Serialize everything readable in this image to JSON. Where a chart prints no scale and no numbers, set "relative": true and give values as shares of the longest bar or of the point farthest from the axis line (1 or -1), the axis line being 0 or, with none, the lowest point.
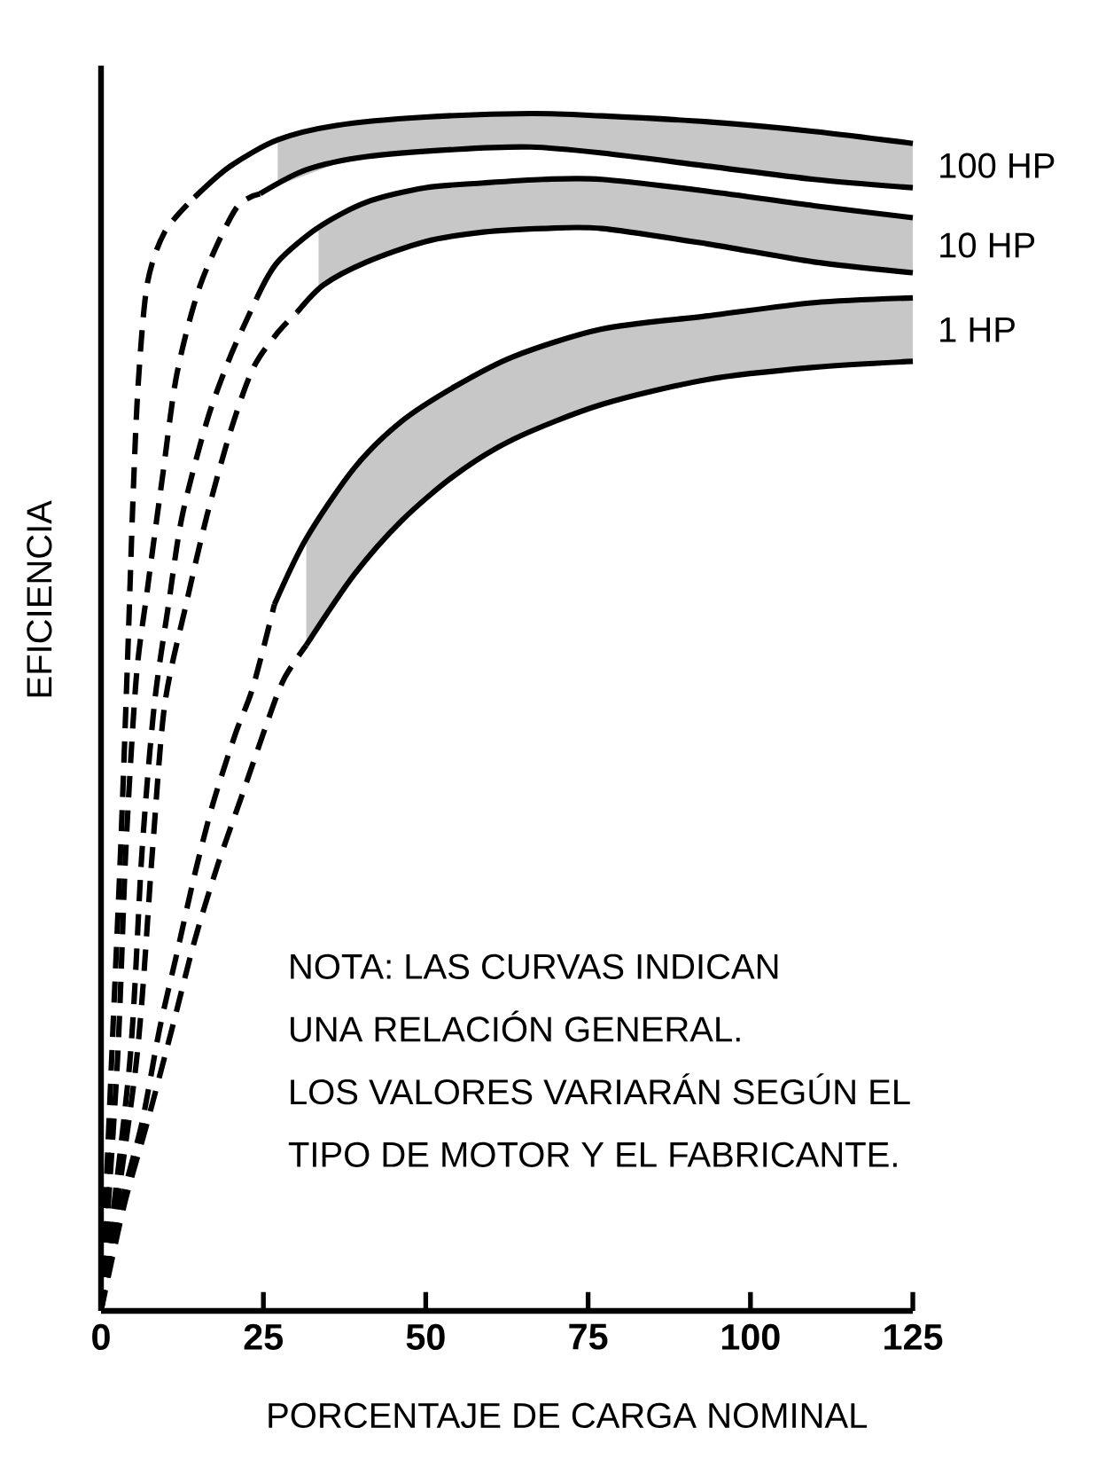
{
  "chart_data": {
    "type": "line",
    "relative": true,
    "xlabel": "PORCENTAJE DE CARGA NOMINAL",
    "ylabel": "EFICIENCIA",
    "xlim": [
      0,
      125
    ],
    "xticks": [
      0,
      25,
      50,
      75,
      100,
      125
    ],
    "series": [
      {
        "color": "#000000",
        "line_style": "dashed",
        "x": [
          0,
          1.6,
          3.0,
          4.1,
          4.9,
          5.7,
          7.1,
          9.8,
          14.4
        ],
        "values": [
          0,
          0.206,
          0.383,
          0.546,
          0.675,
          0.772,
          0.857,
          0.901,
          0.93
        ]
      },
      {
        "color": "#000000",
        "line_style": "solid",
        "x": [
          14.4,
          19.9,
          27.2,
          36.2,
          49.9,
          66.2,
          77.1,
          93.5,
          109.8,
          125
        ],
        "values": [
          0.93,
          0.956,
          0.978,
          0.99,
          0.997,
          1.0,
          0.998,
          0.993,
          0.985,
          0.975
        ],
        "upper": [
          null,
          null,
          0.978,
          0.99,
          0.997,
          1.0,
          0.998,
          0.993,
          0.985,
          0.975
        ],
        "lower": [
          null,
          null,
          0.94,
          0.958,
          0.969,
          0.972,
          0.967,
          0.956,
          0.945,
          0.938
        ]
      },
      {
        "color": "#000000",
        "line_style": "dashed",
        "x": [
          0,
          2.5,
          3.8,
          5.4,
          7.1,
          9.5,
          11.7,
          15.3,
          20.7,
          24.5
        ],
        "values": [
          0,
          0.206,
          0.383,
          0.527,
          0.601,
          0.698,
          0.783,
          0.857,
          0.92,
          0.933
        ]
      },
      {
        "color": "#000000",
        "line_style": "solid",
        "x": [
          24.5,
          31.6,
          40.9,
          54.5,
          66.2,
          77.1,
          93.5,
          109.8,
          125
        ],
        "values": [
          0.933,
          0.953,
          0.964,
          0.97,
          0.972,
          0.967,
          0.956,
          0.945,
          0.938
        ]
      },
      {
        "color": "#000000",
        "line_style": "dashed",
        "x": [
          0,
          4.4,
          6.3,
          8.2,
          10.4,
          12.5,
          16.3,
          19.9,
          24.0
        ],
        "values": [
          0,
          0.206,
          0.383,
          0.506,
          0.59,
          0.664,
          0.743,
          0.797,
          0.846
        ]
      },
      {
        "color": "#000000",
        "line_style": "solid",
        "x": [
          24.0,
          27.2,
          33.5,
          40.9,
          49.9,
          58.9,
          68.1,
          77.1,
          93.5,
          109.8,
          125
        ],
        "values": [
          0.846,
          0.876,
          0.905,
          0.926,
          0.938,
          0.942,
          0.945,
          0.945,
          0.935,
          0.923,
          0.913
        ],
        "upper": [
          null,
          null,
          0.905,
          0.926,
          0.938,
          0.942,
          0.945,
          0.945,
          0.935,
          0.923,
          0.913
        ],
        "lower": [
          null,
          null,
          0.853,
          0.876,
          0.893,
          0.901,
          0.904,
          0.904,
          0.891,
          0.876,
          0.867
        ]
      },
      {
        "color": "#000000",
        "line_style": "dashed",
        "x": [
          0,
          5.4,
          7.9,
          9.8,
          13.1,
          16.3,
          19.9,
          23.4,
          27.2,
          30.2
        ],
        "values": [
          0,
          0.206,
          0.383,
          0.506,
          0.59,
          0.664,
          0.734,
          0.787,
          0.817,
          0.834
        ]
      },
      {
        "color": "#000000",
        "line_style": "solid",
        "x": [
          30.2,
          34.3,
          40.9,
          49.9,
          58.9,
          68.1,
          77.1,
          93.5,
          109.8,
          125
        ],
        "values": [
          0.834,
          0.857,
          0.876,
          0.893,
          0.901,
          0.904,
          0.904,
          0.891,
          0.876,
          0.867
        ]
      },
      {
        "color": "#000000",
        "line_style": "dashed",
        "x": [
          0,
          3.0,
          6.3,
          9.0,
          11.7,
          14.4,
          17.2,
          20.7,
          23.4,
          26.7
        ],
        "values": [
          0,
          0.087,
          0.157,
          0.235,
          0.299,
          0.364,
          0.423,
          0.482,
          0.521,
          0.59
        ]
      },
      {
        "color": "#000000",
        "line_style": "solid",
        "x": [
          26.7,
          31.6,
          39.0,
          46.3,
          54.5,
          63.5,
          77.1,
          93.5,
          109.8,
          125
        ],
        "values": [
          0.59,
          0.645,
          0.704,
          0.743,
          0.772,
          0.797,
          0.82,
          0.831,
          0.842,
          0.846
        ],
        "upper": [
          null,
          0.645,
          0.704,
          0.743,
          0.772,
          0.797,
          0.82,
          0.831,
          0.842,
          0.846
        ],
        "lower": [
          null,
          0.556,
          0.615,
          0.66,
          0.698,
          0.728,
          0.757,
          0.778,
          0.788,
          0.793
        ]
      },
      {
        "color": "#000000",
        "line_style": "dashed",
        "x": [
          0,
          3.5,
          7.1,
          10.9,
          14.4,
          18.0,
          21.8,
          25.3,
          28.1,
          31.6
        ],
        "values": [
          0,
          0.087,
          0.157,
          0.235,
          0.309,
          0.373,
          0.432,
          0.487,
          0.527,
          0.556
        ]
      },
      {
        "color": "#000000",
        "line_style": "solid",
        "x": [
          31.6,
          39.0,
          46.3,
          54.5,
          63.5,
          77.1,
          93.5,
          109.8,
          125
        ],
        "values": [
          0.556,
          0.615,
          0.66,
          0.698,
          0.728,
          0.757,
          0.778,
          0.788,
          0.793
        ]
      }
    ],
    "annotations": [
      "100 HP",
      "10 HP",
      "1 HP",
      "NOTA: LAS CURVAS INDICAN",
      "UNA RELACIÓN GENERAL.",
      "LOS VALORES VARIARÁN SEGÚN EL",
      "TIPO DE MOTOR Y EL FABRICANTE."
    ]
  }
}
